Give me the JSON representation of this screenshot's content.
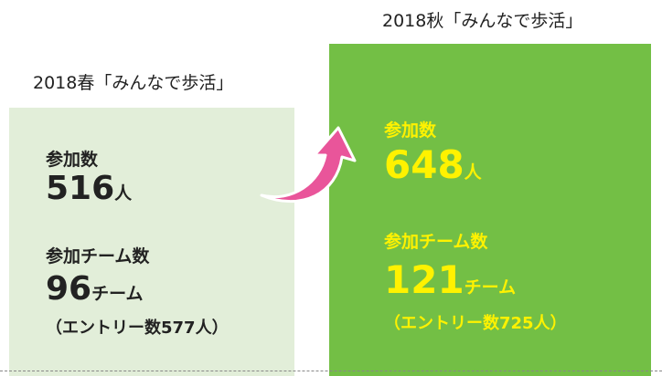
{
  "panels": [
    {
      "heading": "2018春「みんなで歩活」",
      "participants_label": "参加数",
      "participants": 516,
      "participants_unit": "人",
      "teams_label": "参加チーム数",
      "teams": 96,
      "teams_unit": "チーム",
      "entries_note": "（エントリー数577人）"
    },
    {
      "heading": "2018秋「みんなで歩活」",
      "participants_label": "参加数",
      "participants": 648,
      "participants_unit": "人",
      "teams_label": "参加チーム数",
      "teams": 121,
      "teams_unit": "チーム",
      "entries_note": "（エントリー数725人）"
    }
  ]
}
